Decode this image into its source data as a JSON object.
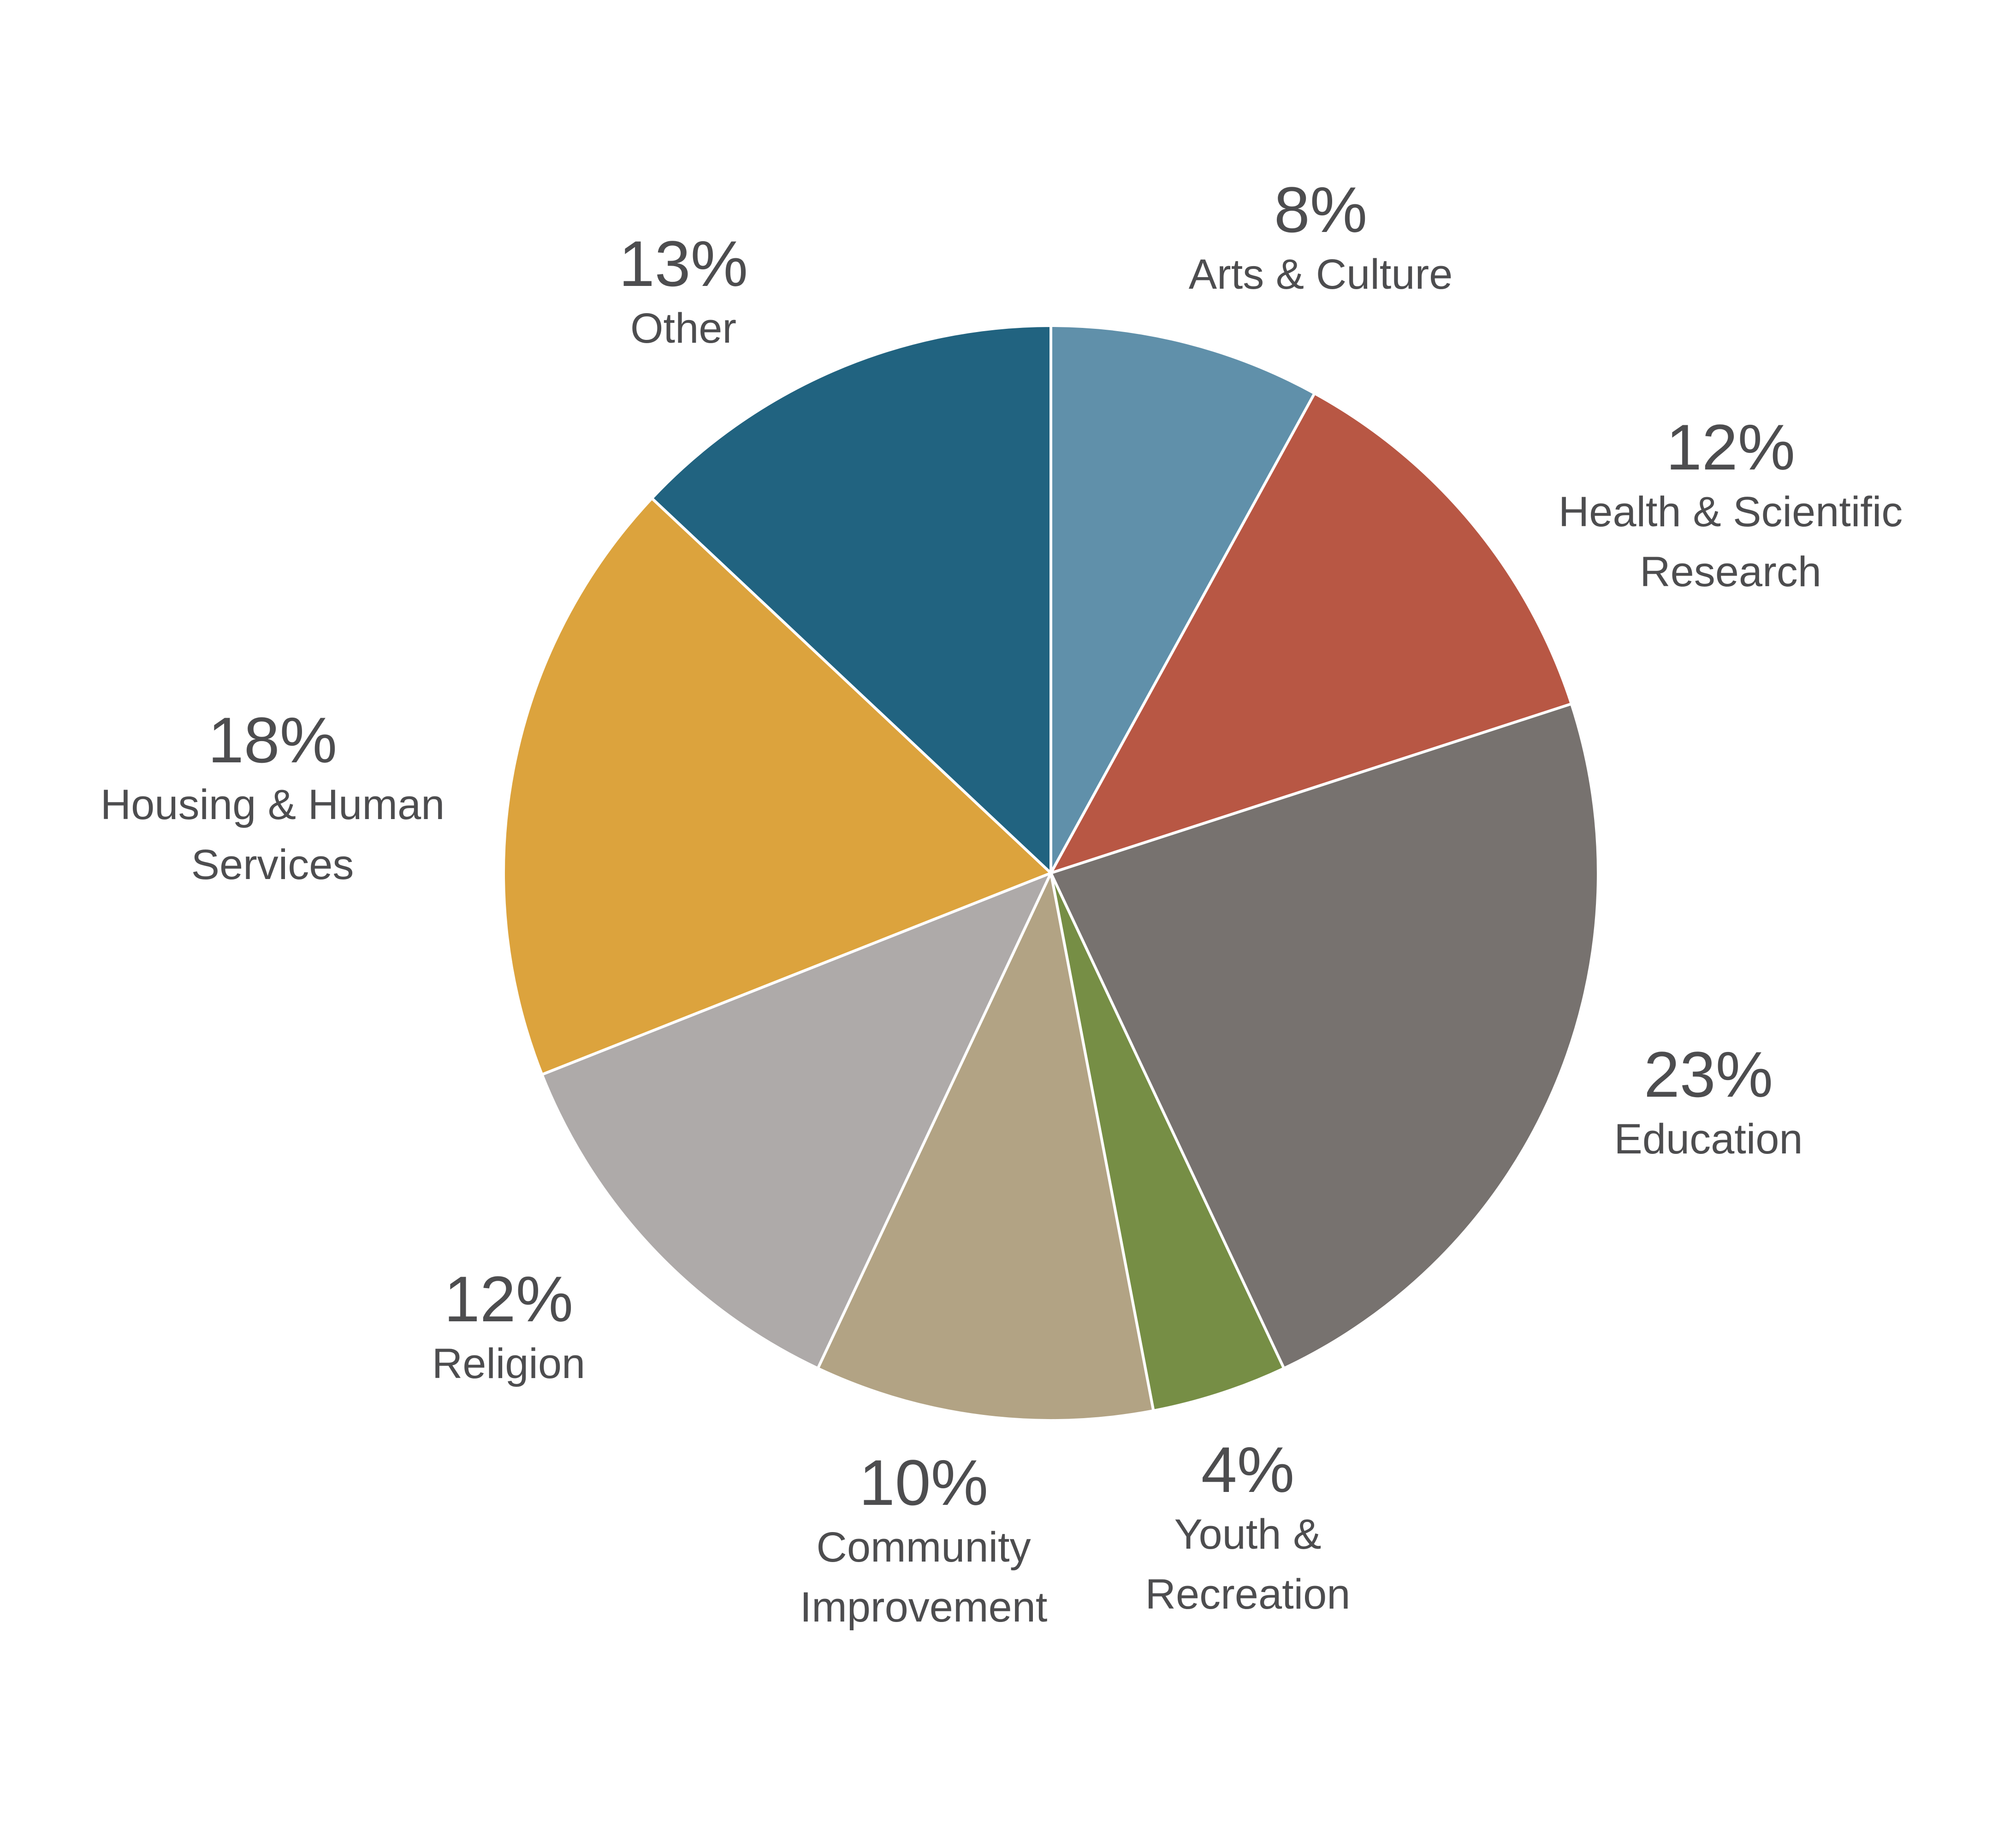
{
  "chart_data": {
    "type": "pie",
    "categories": [
      "Arts & Culture",
      "Health & Scientific Research",
      "Education",
      "Youth & Recreation",
      "Community Improvement",
      "Religion",
      "Housing & Human Services",
      "Other"
    ],
    "values": [
      8,
      12,
      23,
      4,
      10,
      12,
      18,
      13
    ],
    "value_labels": [
      "8%",
      "12%",
      "23%",
      "4%",
      "10%",
      "12%",
      "18%",
      "13%"
    ],
    "colors": [
      "#6090aa",
      "#b85744",
      "#77726f",
      "#768e45",
      "#b2a384",
      "#aeaaa9",
      "#dca33d",
      "#216380"
    ]
  }
}
